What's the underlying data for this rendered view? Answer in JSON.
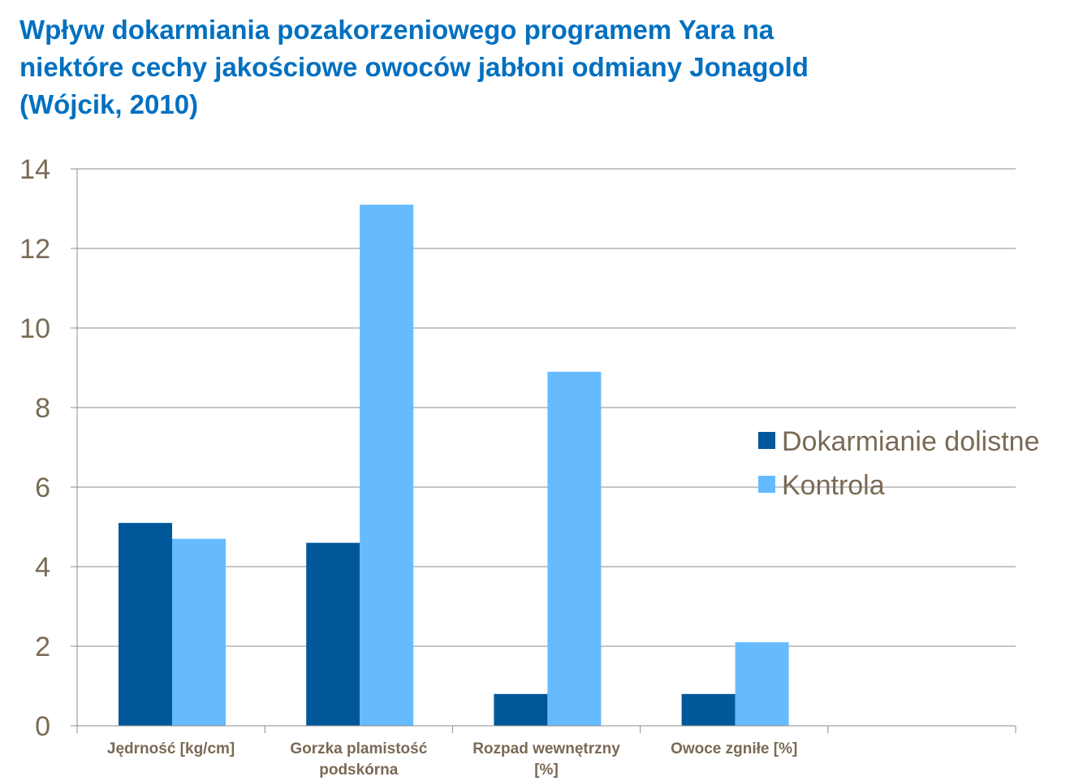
{
  "chart_data": {
    "type": "bar",
    "title_lines": [
      "Wpływ dokarmiania pozakorzeniowego programem Yara na",
      "niektóre cechy jakościowe owoców jabłoni odmiany Jonagold",
      "(Wójcik, 2010)"
    ],
    "categories": [
      [
        "Jędrność [kg/cm]"
      ],
      [
        "Gorzka plamistość",
        "podskórna"
      ],
      [
        "Rozpad wewnętrzny",
        "[%]"
      ],
      [
        "Owoce zgniłe [%]"
      ],
      [
        ""
      ]
    ],
    "series": [
      {
        "name": "Dokarmianie dolistne",
        "color": "#00589b",
        "values": [
          5.1,
          4.6,
          0.8,
          0.8,
          null
        ]
      },
      {
        "name": "Kontrola",
        "color": "#66bbff",
        "values": [
          4.7,
          13.1,
          8.9,
          2.1,
          null
        ]
      }
    ],
    "ylim": [
      0,
      14
    ],
    "yticks": [
      0,
      2,
      4,
      6,
      8,
      10,
      12,
      14
    ],
    "grid": true,
    "legend_position": "right",
    "xlabel": "",
    "ylabel": ""
  }
}
